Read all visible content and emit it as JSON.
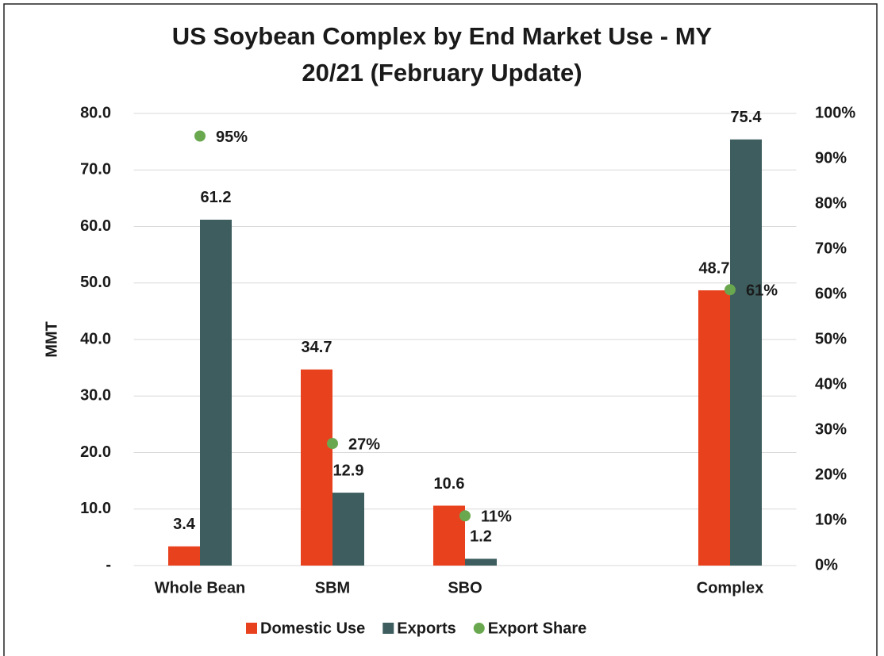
{
  "chart_data": {
    "type": "bar",
    "title": [
      "US Soybean Complex by End Market Use - MY",
      "20/21 (February Update)"
    ],
    "y_label": "MMT",
    "categories": [
      "Whole Bean",
      "SBM",
      "SBO",
      null,
      "Complex"
    ],
    "series": [
      {
        "name": "Domestic Use",
        "type": "bar",
        "color": "#e8411e",
        "values": [
          3.4,
          34.7,
          10.6,
          null,
          48.7
        ]
      },
      {
        "name": "Exports",
        "type": "bar",
        "color": "#3e5d5e",
        "values": [
          61.2,
          12.9,
          1.2,
          null,
          75.4
        ]
      },
      {
        "name": "Export Share",
        "type": "scatter",
        "axis": "y2",
        "color": "#6aa84f",
        "values": [
          95,
          27,
          11,
          null,
          61
        ],
        "value_labels": [
          "95%",
          "27%",
          "11%",
          null,
          "61%"
        ]
      }
    ],
    "ylim": [
      0,
      80
    ],
    "yticks": [
      {
        "value": 0,
        "label": "-"
      },
      {
        "value": 10,
        "label": "10.0"
      },
      {
        "value": 20,
        "label": "20.0"
      },
      {
        "value": 30,
        "label": "30.0"
      },
      {
        "value": 40,
        "label": "40.0"
      },
      {
        "value": 50,
        "label": "50.0"
      },
      {
        "value": 60,
        "label": "60.0"
      },
      {
        "value": 70,
        "label": "70.0"
      },
      {
        "value": 80,
        "label": "80.0"
      }
    ],
    "y2lim": [
      0,
      100
    ],
    "y2ticks": [
      {
        "value": 0,
        "label": "0%"
      },
      {
        "value": 10,
        "label": "10%"
      },
      {
        "value": 20,
        "label": "20%"
      },
      {
        "value": 30,
        "label": "30%"
      },
      {
        "value": 40,
        "label": "40%"
      },
      {
        "value": 50,
        "label": "50%"
      },
      {
        "value": 60,
        "label": "60%"
      },
      {
        "value": 70,
        "label": "70%"
      },
      {
        "value": 80,
        "label": "80%"
      },
      {
        "value": 90,
        "label": "90%"
      },
      {
        "value": 100,
        "label": "100%"
      }
    ],
    "grid": true,
    "legend": "bottom"
  }
}
